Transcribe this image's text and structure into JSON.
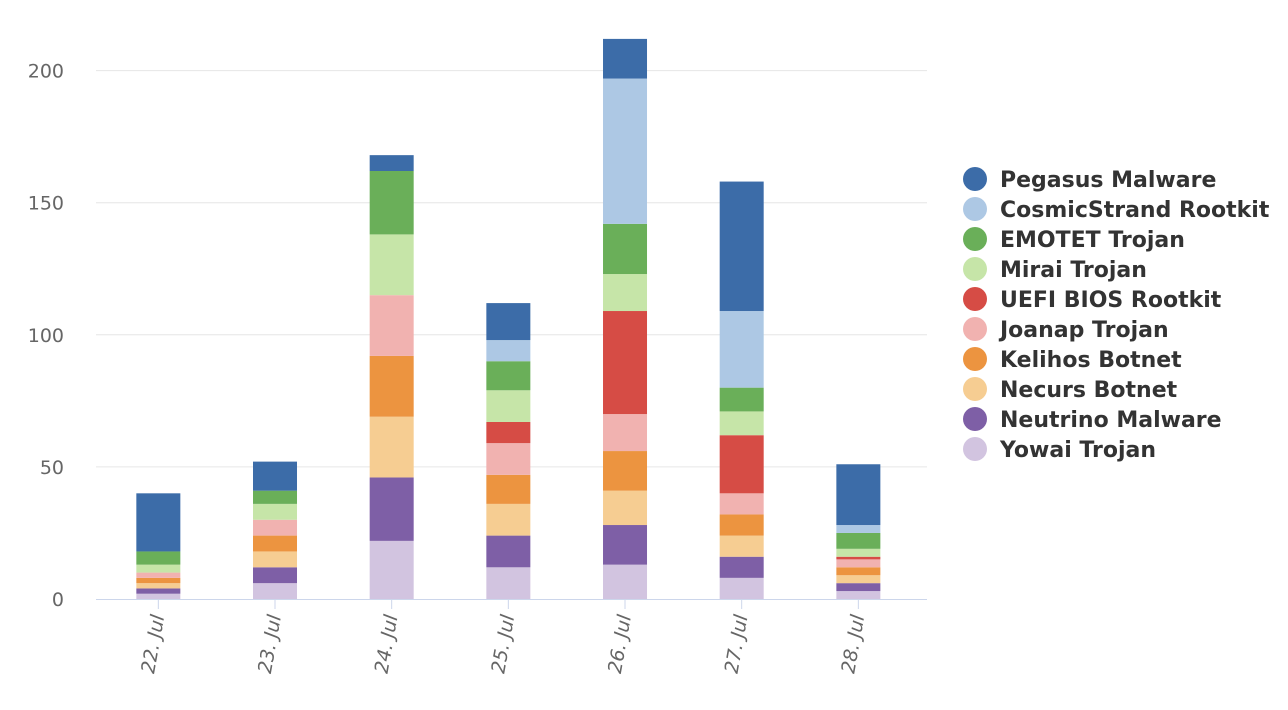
{
  "chart_data": {
    "type": "bar",
    "stacked": true,
    "categories": [
      "22. Jul",
      "23. Jul",
      "24. Jul",
      "25. Jul",
      "26. Jul",
      "27. Jul",
      "28. Jul"
    ],
    "ylim": [
      0,
      220
    ],
    "yticks": [
      "0",
      "50",
      "100",
      "150",
      "200"
    ],
    "grid": true,
    "legend_position": "right",
    "series": [
      {
        "name": "Yowai Trojan",
        "color": "#d2c4e0",
        "values": [
          2,
          6,
          22,
          12,
          13,
          8,
          3
        ]
      },
      {
        "name": "Neutrino Malware",
        "color": "#7e5fa6",
        "values": [
          2,
          6,
          24,
          12,
          15,
          8,
          3
        ]
      },
      {
        "name": "Necurs Botnet",
        "color": "#f6cd92",
        "values": [
          2,
          6,
          23,
          12,
          13,
          8,
          3
        ]
      },
      {
        "name": "Kelihos Botnet",
        "color": "#ec9440",
        "values": [
          2,
          6,
          23,
          11,
          15,
          8,
          3
        ]
      },
      {
        "name": "Joanap Trojan",
        "color": "#f1b2b0",
        "values": [
          2,
          6,
          23,
          12,
          14,
          8,
          3
        ]
      },
      {
        "name": "UEFI BIOS Rootkit",
        "color": "#d64c45",
        "values": [
          0,
          0,
          0,
          8,
          39,
          22,
          1
        ]
      },
      {
        "name": "Mirai Trojan",
        "color": "#c6e5a8",
        "values": [
          3,
          6,
          23,
          12,
          14,
          9,
          3
        ]
      },
      {
        "name": "EMOTET Trojan",
        "color": "#6aaf59",
        "values": [
          5,
          5,
          24,
          11,
          19,
          9,
          6
        ]
      },
      {
        "name": "CosmicStrand Rootkit",
        "color": "#adc8e4",
        "values": [
          0,
          0,
          0,
          8,
          55,
          29,
          3
        ]
      },
      {
        "name": "Pegasus Malware",
        "color": "#3c6ca8",
        "values": [
          22,
          11,
          6,
          14,
          15,
          49,
          23
        ]
      }
    ]
  }
}
